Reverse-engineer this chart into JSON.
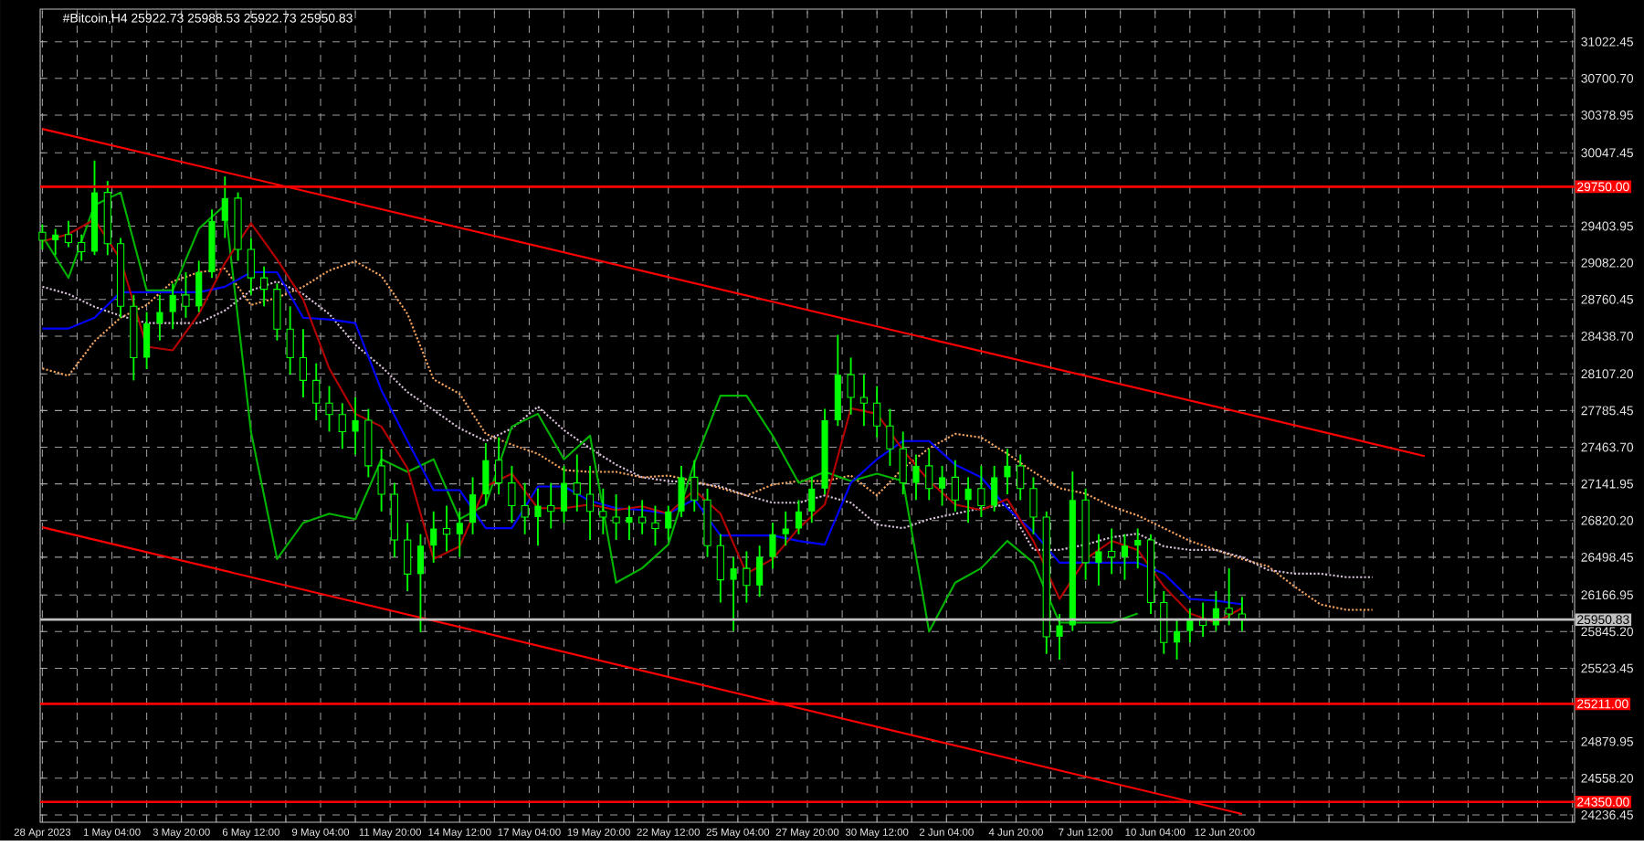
{
  "chart_data": {
    "type": "candlestick",
    "title": "#Bitcoin,H4  25922.73 25988.53 25922.73 25950.83",
    "color": "#00ff00",
    "x": [
      "2023-04-28T12:00",
      "2023-04-29T00:00",
      "2023-04-29T12:00",
      "2023-04-30T00:00",
      "2023-04-30T12:00",
      "2023-05-01T00:00",
      "2023-05-01T12:00",
      "2023-05-02T00:00",
      "2023-05-02T12:00",
      "2023-05-03T00:00",
      "2023-05-03T12:00",
      "2023-05-04T00:00",
      "2023-05-04T12:00",
      "2023-05-05T00:00",
      "2023-05-05T12:00",
      "2023-05-06T00:00",
      "2023-05-06T12:00",
      "2023-05-07T00:00",
      "2023-05-07T12:00",
      "2023-05-08T00:00",
      "2023-05-08T12:00",
      "2023-05-09T00:00",
      "2023-05-09T12:00",
      "2023-05-10T00:00",
      "2023-05-10T12:00",
      "2023-05-11T00:00",
      "2023-05-11T12:00",
      "2023-05-12T00:00",
      "2023-05-12T12:00",
      "2023-05-13T00:00",
      "2023-05-13T12:00",
      "2023-05-14T00:00",
      "2023-05-14T12:00",
      "2023-05-15T00:00",
      "2023-05-15T12:00",
      "2023-05-16T00:00",
      "2023-05-16T12:00",
      "2023-05-17T00:00",
      "2023-05-17T12:00",
      "2023-05-18T00:00",
      "2023-05-18T12:00",
      "2023-05-19T00:00",
      "2023-05-19T12:00",
      "2023-05-20T00:00",
      "2023-05-20T12:00",
      "2023-05-21T00:00",
      "2023-05-21T12:00",
      "2023-05-22T00:00",
      "2023-05-22T12:00",
      "2023-05-23T00:00",
      "2023-05-23T12:00",
      "2023-05-24T00:00",
      "2023-05-24T12:00",
      "2023-05-25T00:00",
      "2023-05-25T12:00",
      "2023-05-26T00:00",
      "2023-05-26T12:00",
      "2023-05-27T00:00",
      "2023-05-27T12:00",
      "2023-05-28T00:00",
      "2023-05-28T12:00",
      "2023-05-29T00:00",
      "2023-05-29T12:00",
      "2023-05-30T00:00",
      "2023-05-30T12:00",
      "2023-05-31T00:00",
      "2023-05-31T12:00",
      "2023-06-01T00:00",
      "2023-06-01T12:00",
      "2023-06-02T00:00",
      "2023-06-02T12:00",
      "2023-06-03T00:00",
      "2023-06-03T12:00",
      "2023-06-04T00:00",
      "2023-06-04T12:00",
      "2023-06-05T00:00",
      "2023-06-05T12:00",
      "2023-06-06T00:00",
      "2023-06-06T12:00",
      "2023-06-07T00:00",
      "2023-06-07T12:00",
      "2023-06-08T00:00",
      "2023-06-08T12:00",
      "2023-06-09T00:00",
      "2023-06-09T12:00",
      "2023-06-10T00:00",
      "2023-06-10T12:00",
      "2023-06-11T00:00",
      "2023-06-11T12:00",
      "2023-06-12T00:00",
      "2023-06-12T12:00",
      "2023-06-13T00:00",
      "2023-06-13T12:00"
    ],
    "ohlc": [
      [
        29350,
        29420,
        29200,
        29280
      ],
      [
        29280,
        29380,
        29150,
        29330
      ],
      [
        29330,
        29450,
        29220,
        29260
      ],
      [
        29260,
        29330,
        29100,
        29180
      ],
      [
        29180,
        29980,
        29150,
        29700
      ],
      [
        29700,
        29800,
        29150,
        29250
      ],
      [
        29250,
        29300,
        28600,
        28700
      ],
      [
        28700,
        28800,
        28050,
        28250
      ],
      [
        28250,
        28650,
        28150,
        28550
      ],
      [
        28550,
        28800,
        28400,
        28650
      ],
      [
        28650,
        28900,
        28500,
        28800
      ],
      [
        28800,
        29000,
        28600,
        28700
      ],
      [
        28700,
        29100,
        28650,
        29000
      ],
      [
        29000,
        29550,
        28950,
        29450
      ],
      [
        29450,
        29840,
        29300,
        29650
      ],
      [
        29650,
        29700,
        29100,
        29200
      ],
      [
        29200,
        29300,
        28800,
        28950
      ],
      [
        28950,
        29050,
        28700,
        28850
      ],
      [
        28850,
        28900,
        28400,
        28500
      ],
      [
        28500,
        28700,
        28100,
        28250
      ],
      [
        28250,
        28500,
        27900,
        28050
      ],
      [
        28050,
        28200,
        27700,
        27850
      ],
      [
        27850,
        28000,
        27600,
        27750
      ],
      [
        27750,
        27850,
        27450,
        27600
      ],
      [
        27600,
        27900,
        27400,
        27700
      ],
      [
        27700,
        27800,
        27200,
        27300
      ],
      [
        27300,
        27450,
        26900,
        27050
      ],
      [
        27050,
        27150,
        26500,
        26650
      ],
      [
        26650,
        26800,
        26200,
        26350
      ],
      [
        26350,
        26700,
        25840,
        26600
      ],
      [
        26600,
        26900,
        26450,
        26750
      ],
      [
        26750,
        26950,
        26550,
        26700
      ],
      [
        26700,
        26900,
        26500,
        26800
      ],
      [
        26800,
        27200,
        26700,
        27050
      ],
      [
        27050,
        27500,
        26950,
        27350
      ],
      [
        27350,
        27550,
        27050,
        27150
      ],
      [
        27150,
        27300,
        26800,
        26950
      ],
      [
        26950,
        27150,
        26700,
        26850
      ],
      [
        26850,
        27100,
        26600,
        26950
      ],
      [
        26950,
        27150,
        26750,
        26900
      ],
      [
        26900,
        27300,
        26800,
        27150
      ],
      [
        27150,
        27400,
        26900,
        27050
      ],
      [
        27050,
        27300,
        26650,
        26900
      ],
      [
        26900,
        27100,
        26700,
        26850
      ],
      [
        26850,
        27050,
        26650,
        26800
      ],
      [
        26800,
        26950,
        26650,
        26850
      ],
      [
        26850,
        27000,
        26700,
        26800
      ],
      [
        26800,
        26950,
        26600,
        26750
      ],
      [
        26750,
        26950,
        26650,
        26900
      ],
      [
        26900,
        27300,
        26850,
        27200
      ],
      [
        27200,
        27350,
        26900,
        27000
      ],
      [
        27000,
        27100,
        26500,
        26600
      ],
      [
        26600,
        26700,
        26100,
        26300
      ],
      [
        26300,
        26500,
        25850,
        26400
      ],
      [
        26400,
        26550,
        26100,
        26250
      ],
      [
        26250,
        26600,
        26150,
        26500
      ],
      [
        26500,
        26800,
        26400,
        26700
      ],
      [
        26700,
        26900,
        26600,
        26750
      ],
      [
        26750,
        27000,
        26700,
        26900
      ],
      [
        26900,
        27200,
        26800,
        27100
      ],
      [
        27100,
        27800,
        27050,
        27700
      ],
      [
        27700,
        28450,
        27650,
        28100
      ],
      [
        28100,
        28250,
        27750,
        27900
      ],
      [
        27900,
        28100,
        27650,
        27850
      ],
      [
        27850,
        28000,
        27550,
        27650
      ],
      [
        27650,
        27800,
        27300,
        27450
      ],
      [
        27450,
        27600,
        27050,
        27150
      ],
      [
        27150,
        27400,
        27000,
        27300
      ],
      [
        27300,
        27450,
        27000,
        27100
      ],
      [
        27100,
        27300,
        26950,
        27200
      ],
      [
        27200,
        27350,
        26900,
        27000
      ],
      [
        27000,
        27200,
        26800,
        27100
      ],
      [
        27100,
        27300,
        26850,
        26950
      ],
      [
        26950,
        27300,
        26900,
        27200
      ],
      [
        27200,
        27450,
        27050,
        27300
      ],
      [
        27300,
        27400,
        27000,
        27100
      ],
      [
        27100,
        27200,
        26700,
        26850
      ],
      [
        26850,
        26900,
        25650,
        25800
      ],
      [
        25800,
        26000,
        25600,
        25900
      ],
      [
        25900,
        27250,
        25850,
        27000
      ],
      [
        27000,
        27100,
        26300,
        26450
      ],
      [
        26450,
        26700,
        26250,
        26550
      ],
      [
        26550,
        26750,
        26350,
        26500
      ],
      [
        26500,
        26700,
        26300,
        26600
      ],
      [
        26600,
        26750,
        26400,
        26650
      ],
      [
        26650,
        26700,
        26000,
        26100
      ],
      [
        26100,
        26200,
        25650,
        25750
      ],
      [
        25750,
        25950,
        25600,
        25850
      ],
      [
        25850,
        26050,
        25750,
        25950
      ],
      [
        25950,
        26100,
        25800,
        25900
      ],
      [
        25900,
        26200,
        25850,
        26050
      ],
      [
        26050,
        26400,
        25900,
        26000
      ],
      [
        26000,
        26150,
        25850,
        25950.83
      ]
    ],
    "series": [
      {
        "type": "line",
        "color": "#ff0000",
        "line_style": "solid",
        "x": [
          "2023-04-28T12:00",
          "2023-06-20T12:00"
        ],
        "values": [
          30257,
          27386
        ]
      },
      {
        "type": "line",
        "color": "#ff0000",
        "line_style": "solid",
        "x": [
          "2023-04-28T12:00",
          "2023-06-13T12:00"
        ],
        "values": [
          26761,
          24244
        ]
      },
      {
        "type": "line",
        "color": "#f4a460",
        "line_style": "dotted",
        "x": [
          "2023-04-28T12:00",
          "2023-04-29T12:00",
          "2023-04-30T12:00",
          "2023-05-01T12:00",
          "2023-05-02T12:00",
          "2023-05-03T12:00",
          "2023-05-04T12:00",
          "2023-05-05T12:00",
          "2023-05-06T12:00",
          "2023-05-07T12:00",
          "2023-05-08T12:00",
          "2023-05-09T12:00",
          "2023-05-10T12:00",
          "2023-05-11T12:00",
          "2023-05-12T12:00",
          "2023-05-13T12:00",
          "2023-05-14T12:00",
          "2023-05-15T12:00",
          "2023-05-16T12:00",
          "2023-05-17T12:00",
          "2023-05-18T12:00",
          "2023-05-19T12:00",
          "2023-05-20T12:00",
          "2023-05-21T12:00",
          "2023-05-22T12:00",
          "2023-05-23T12:00",
          "2023-05-24T12:00",
          "2023-05-25T12:00",
          "2023-05-26T12:00",
          "2023-05-27T12:00",
          "2023-05-28T12:00",
          "2023-05-29T12:00",
          "2023-05-30T12:00",
          "2023-05-31T12:00",
          "2023-06-01T12:00",
          "2023-06-02T12:00",
          "2023-06-03T12:00",
          "2023-06-04T12:00",
          "2023-06-05T12:00",
          "2023-06-06T12:00",
          "2023-06-07T12:00",
          "2023-06-08T12:00",
          "2023-06-09T12:00",
          "2023-06-10T12:00",
          "2023-06-11T12:00",
          "2023-06-12T12:00",
          "2023-06-13T12:00",
          "2023-06-14T12:00",
          "2023-06-15T12:00",
          "2023-06-16T12:00",
          "2023-06-17T12:00",
          "2023-06-18T12:00"
        ],
        "values": [
          28155,
          28091,
          28394,
          28601,
          28712,
          28919,
          28999,
          29031,
          28712,
          28776,
          28872,
          29015,
          29095,
          28967,
          28633,
          28059,
          27932,
          27581,
          27486,
          27406,
          27263,
          27247,
          27247,
          27199,
          27215,
          27167,
          27104,
          27040,
          27135,
          27167,
          27167,
          27215,
          27040,
          27279,
          27454,
          27581,
          27549,
          27406,
          27247,
          27104,
          27056,
          26944,
          26864,
          26753,
          26641,
          26562,
          26482,
          26418,
          26243,
          26084,
          26036,
          26036
        ]
      },
      {
        "type": "line",
        "color": "#d8bfd8",
        "line_style": "dotted",
        "x": [
          "2023-04-28T12:00",
          "2023-04-29T12:00",
          "2023-04-30T12:00",
          "2023-05-01T12:00",
          "2023-05-02T12:00",
          "2023-05-03T12:00",
          "2023-05-04T12:00",
          "2023-05-05T12:00",
          "2023-05-06T12:00",
          "2023-05-07T12:00",
          "2023-05-08T12:00",
          "2023-05-09T12:00",
          "2023-05-10T12:00",
          "2023-05-11T12:00",
          "2023-05-12T12:00",
          "2023-05-13T12:00",
          "2023-05-14T12:00",
          "2023-05-15T12:00",
          "2023-05-16T12:00",
          "2023-05-17T12:00",
          "2023-05-18T12:00",
          "2023-05-19T12:00",
          "2023-05-20T12:00",
          "2023-05-21T12:00",
          "2023-05-22T12:00",
          "2023-05-23T12:00",
          "2023-05-24T12:00",
          "2023-05-25T12:00",
          "2023-05-26T12:00",
          "2023-05-27T12:00",
          "2023-05-28T12:00",
          "2023-05-29T12:00",
          "2023-05-30T12:00",
          "2023-05-31T12:00",
          "2023-06-01T12:00",
          "2023-06-02T12:00",
          "2023-06-03T12:00",
          "2023-06-04T12:00",
          "2023-06-05T12:00",
          "2023-06-06T12:00",
          "2023-06-07T12:00",
          "2023-06-08T12:00",
          "2023-06-09T12:00",
          "2023-06-10T12:00",
          "2023-06-11T12:00",
          "2023-06-12T12:00",
          "2023-06-13T12:00",
          "2023-06-14T12:00",
          "2023-06-15T12:00",
          "2023-06-16T12:00",
          "2023-06-17T12:00",
          "2023-06-18T12:00"
        ],
        "values": [
          28872,
          28808,
          28696,
          28617,
          28553,
          28553,
          28553,
          28664,
          28840,
          28919,
          28808,
          28633,
          28362,
          28171,
          27948,
          27789,
          27629,
          27518,
          27629,
          27820,
          27613,
          27454,
          27310,
          27199,
          27167,
          27151,
          27119,
          27040,
          26976,
          26976,
          27040,
          26976,
          26785,
          26753,
          26832,
          26880,
          26928,
          26960,
          26562,
          26562,
          26609,
          26673,
          26705,
          26593,
          26562,
          26562,
          26498,
          26386,
          26354,
          26354,
          26323,
          26323
        ]
      },
      {
        "type": "line",
        "color": "#00b400",
        "line_style": "solid",
        "x": [
          "2023-04-28T12:00",
          "2023-04-29T12:00",
          "2023-04-30T12:00",
          "2023-05-01T12:00",
          "2023-05-02T12:00",
          "2023-05-03T12:00",
          "2023-05-04T12:00",
          "2023-05-05T12:00",
          "2023-05-06T12:00",
          "2023-05-07T12:00",
          "2023-05-08T12:00",
          "2023-05-09T12:00",
          "2023-05-10T12:00",
          "2023-05-11T12:00",
          "2023-05-12T12:00",
          "2023-05-13T12:00",
          "2023-05-14T12:00",
          "2023-05-15T12:00",
          "2023-05-16T12:00",
          "2023-05-17T12:00",
          "2023-05-18T12:00",
          "2023-05-19T12:00",
          "2023-05-20T12:00",
          "2023-05-21T12:00",
          "2023-05-22T12:00",
          "2023-05-23T12:00",
          "2023-05-24T12:00",
          "2023-05-25T12:00",
          "2023-05-26T12:00",
          "2023-05-27T12:00",
          "2023-05-28T12:00",
          "2023-05-29T12:00",
          "2023-05-30T12:00",
          "2023-05-31T12:00",
          "2023-06-01T12:00",
          "2023-06-02T12:00",
          "2023-06-03T12:00",
          "2023-06-04T12:00",
          "2023-06-05T12:00",
          "2023-06-06T12:00",
          "2023-06-07T12:00",
          "2023-06-08T12:00",
          "2023-06-09T12:00"
        ],
        "values": [
          29318,
          28951,
          29589,
          29700,
          28840,
          28840,
          29382,
          29589,
          27597,
          26482,
          26800,
          26880,
          26832,
          27358,
          27247,
          27358,
          26832,
          26960,
          27645,
          27757,
          27358,
          27565,
          26275,
          26402,
          26609,
          27327,
          27916,
          27916,
          27565,
          27151,
          27247,
          27167,
          27231,
          27167,
          25845,
          26275,
          26402,
          26641,
          26450,
          25924,
          25924,
          25924,
          26004
        ]
      },
      {
        "type": "line",
        "color": "#0000ff",
        "line_style": "solid",
        "x": [
          "2023-04-28T12:00",
          "2023-04-29T12:00",
          "2023-04-30T12:00",
          "2023-05-01T12:00",
          "2023-05-02T12:00",
          "2023-05-03T12:00",
          "2023-05-04T12:00",
          "2023-05-05T12:00",
          "2023-05-06T12:00",
          "2023-05-07T12:00",
          "2023-05-08T12:00",
          "2023-05-09T12:00",
          "2023-05-10T12:00",
          "2023-05-11T12:00",
          "2023-05-12T12:00",
          "2023-05-13T12:00",
          "2023-05-14T12:00",
          "2023-05-15T12:00",
          "2023-05-16T12:00",
          "2023-05-17T12:00",
          "2023-05-18T12:00",
          "2023-05-19T12:00",
          "2023-05-20T12:00",
          "2023-05-21T12:00",
          "2023-05-22T12:00",
          "2023-05-23T12:00",
          "2023-05-24T12:00",
          "2023-05-25T12:00",
          "2023-05-26T12:00",
          "2023-05-27T12:00",
          "2023-05-28T12:00",
          "2023-05-29T12:00",
          "2023-05-30T12:00",
          "2023-05-31T12:00",
          "2023-06-01T12:00",
          "2023-06-02T12:00",
          "2023-06-03T12:00",
          "2023-06-04T12:00",
          "2023-06-05T12:00",
          "2023-06-06T12:00",
          "2023-06-07T12:00",
          "2023-06-08T12:00",
          "2023-06-09T12:00",
          "2023-06-10T12:00",
          "2023-06-11T12:00",
          "2023-06-12T12:00",
          "2023-06-13T12:00"
        ],
        "values": [
          28505,
          28505,
          28600,
          28824,
          28824,
          28824,
          28824,
          28872,
          28999,
          28999,
          28600,
          28585,
          28553,
          27963,
          27518,
          27087,
          27087,
          26753,
          26753,
          27119,
          27119,
          26992,
          26928,
          26912,
          26880,
          27008,
          26689,
          26689,
          26689,
          26641,
          26609,
          27151,
          27358,
          27518,
          27518,
          27310,
          27199,
          26928,
          26721,
          26450,
          26450,
          26450,
          26450,
          26354,
          26131,
          26116,
          26084
        ]
      },
      {
        "type": "line",
        "color": "#b40000",
        "line_style": "solid",
        "x": [
          "2023-04-28T12:00",
          "2023-04-29T12:00",
          "2023-04-30T12:00",
          "2023-05-01T12:00",
          "2023-05-02T12:00",
          "2023-05-03T12:00",
          "2023-05-04T12:00",
          "2023-05-05T12:00",
          "2023-05-06T12:00",
          "2023-05-07T12:00",
          "2023-05-08T12:00",
          "2023-05-09T12:00",
          "2023-05-10T12:00",
          "2023-05-11T12:00",
          "2023-05-12T12:00",
          "2023-05-13T12:00",
          "2023-05-14T12:00",
          "2023-05-15T12:00",
          "2023-05-16T12:00",
          "2023-05-17T12:00",
          "2023-05-18T12:00",
          "2023-05-19T12:00",
          "2023-05-20T12:00",
          "2023-05-21T12:00",
          "2023-05-22T12:00",
          "2023-05-23T12:00",
          "2023-05-24T12:00",
          "2023-05-25T12:00",
          "2023-05-26T12:00",
          "2023-05-27T12:00",
          "2023-05-28T12:00",
          "2023-05-29T12:00",
          "2023-05-30T12:00",
          "2023-05-31T12:00",
          "2023-06-01T12:00",
          "2023-06-02T12:00",
          "2023-06-03T12:00",
          "2023-06-04T12:00",
          "2023-06-05T12:00",
          "2023-06-06T12:00",
          "2023-06-07T12:00",
          "2023-06-08T12:00",
          "2023-06-09T12:00",
          "2023-06-10T12:00",
          "2023-06-11T12:00",
          "2023-06-12T12:00",
          "2023-06-13T12:00"
        ],
        "values": [
          29270,
          29334,
          29462,
          29111,
          28346,
          28314,
          28633,
          29079,
          29430,
          29111,
          28760,
          28155,
          27757,
          27645,
          27279,
          26482,
          26593,
          27119,
          27231,
          26928,
          26928,
          26960,
          26912,
          26944,
          26880,
          27087,
          26880,
          26354,
          26482,
          26753,
          26960,
          27804,
          27757,
          27438,
          27167,
          26960,
          26912,
          27008,
          26641,
          26131,
          26482,
          26641,
          26562,
          26243,
          26004,
          25924,
          26052
        ]
      }
    ],
    "ref_lines": [
      {
        "axis": "y",
        "value": 29750.0,
        "label": "29750.00",
        "color": "#ff0000",
        "line_style": "solid"
      },
      {
        "axis": "y",
        "value": 25211.0,
        "label": "25211.00",
        "color": "#ff0000",
        "line_style": "solid"
      },
      {
        "axis": "y",
        "value": 24350.0,
        "label": "24350.00",
        "color": "#ff0000",
        "line_style": "solid"
      },
      {
        "axis": "y",
        "value": 25950.83,
        "label": "25950.83",
        "color": "#c0c0c0",
        "line_style": "solid"
      }
    ],
    "xlim": [
      "2023-04-28T10:00",
      "2023-06-26T06:00"
    ],
    "ylim": [
      24172,
      31309
    ],
    "xticks": [
      {
        "value": "2023-04-28T12:00",
        "label": "28 Apr 2023"
      },
      {
        "value": "2023-04-29T20:00",
        "label": null
      },
      {
        "value": "2023-05-01T04:00",
        "label": "1 May 04:00"
      },
      {
        "value": "2023-05-02T12:00",
        "label": null
      },
      {
        "value": "2023-05-03T20:00",
        "label": "3 May 20:00"
      },
      {
        "value": "2023-05-05T04:00",
        "label": null
      },
      {
        "value": "2023-05-06T12:00",
        "label": "6 May 12:00"
      },
      {
        "value": "2023-05-07T20:00",
        "label": null
      },
      {
        "value": "2023-05-09T04:00",
        "label": "9 May 04:00"
      },
      {
        "value": "2023-05-10T12:00",
        "label": null
      },
      {
        "value": "2023-05-11T20:00",
        "label": "11 May 20:00"
      },
      {
        "value": "2023-05-13T04:00",
        "label": null
      },
      {
        "value": "2023-05-14T12:00",
        "label": "14 May 12:00"
      },
      {
        "value": "2023-05-15T20:00",
        "label": null
      },
      {
        "value": "2023-05-17T04:00",
        "label": "17 May 04:00"
      },
      {
        "value": "2023-05-18T12:00",
        "label": null
      },
      {
        "value": "2023-05-19T20:00",
        "label": "19 May 20:00"
      },
      {
        "value": "2023-05-21T04:00",
        "label": null
      },
      {
        "value": "2023-05-22T12:00",
        "label": "22 May 12:00"
      },
      {
        "value": "2023-05-23T20:00",
        "label": null
      },
      {
        "value": "2023-05-25T04:00",
        "label": "25 May 04:00"
      },
      {
        "value": "2023-05-26T12:00",
        "label": null
      },
      {
        "value": "2023-05-27T20:00",
        "label": "27 May 20:00"
      },
      {
        "value": "2023-05-29T04:00",
        "label": null
      },
      {
        "value": "2023-05-30T12:00",
        "label": "30 May 12:00"
      },
      {
        "value": "2023-05-31T20:00",
        "label": null
      },
      {
        "value": "2023-06-02T04:00",
        "label": "2 Jun 04:00"
      },
      {
        "value": "2023-06-03T12:00",
        "label": null
      },
      {
        "value": "2023-06-04T20:00",
        "label": "4 Jun 20:00"
      },
      {
        "value": "2023-06-06T04:00",
        "label": null
      },
      {
        "value": "2023-06-07T12:00",
        "label": "7 Jun 12:00"
      },
      {
        "value": "2023-06-08T20:00",
        "label": null
      },
      {
        "value": "2023-06-10T04:00",
        "label": "10 Jun 04:00"
      },
      {
        "value": "2023-06-11T12:00",
        "label": null
      },
      {
        "value": "2023-06-12T20:00",
        "label": "12 Jun 20:00"
      },
      {
        "value": "2023-06-14T04:00",
        "label": null
      },
      {
        "value": "2023-06-15T12:00",
        "label": null
      },
      {
        "value": "2023-06-16T20:00",
        "label": null
      },
      {
        "value": "2023-06-18T04:00",
        "label": null
      },
      {
        "value": "2023-06-19T12:00",
        "label": null
      },
      {
        "value": "2023-06-20T20:00",
        "label": null
      },
      {
        "value": "2023-06-22T04:00",
        "label": null
      },
      {
        "value": "2023-06-23T12:00",
        "label": null
      },
      {
        "value": "2023-06-24T20:00",
        "label": null
      },
      {
        "value": "2023-06-26T04:00",
        "label": null
      }
    ],
    "yticks": [
      {
        "value": 24236.45,
        "label": "24236.45"
      },
      {
        "value": 24558.2,
        "label": "24558.20"
      },
      {
        "value": 24879.95,
        "label": "24879.95"
      },
      {
        "value": 25523.45,
        "label": "25523.45"
      },
      {
        "value": 25845.2,
        "label": "25845.20"
      },
      {
        "value": 26166.95,
        "label": "26166.95"
      },
      {
        "value": 26498.45,
        "label": "26498.45"
      },
      {
        "value": 26820.2,
        "label": "26820.20"
      },
      {
        "value": 27141.95,
        "label": "27141.95"
      },
      {
        "value": 27463.7,
        "label": "27463.70"
      },
      {
        "value": 27785.45,
        "label": "27785.45"
      },
      {
        "value": 28107.2,
        "label": "28107.20"
      },
      {
        "value": 28438.7,
        "label": "28438.70"
      },
      {
        "value": 28760.45,
        "label": "28760.45"
      },
      {
        "value": 29082.2,
        "label": "29082.20"
      },
      {
        "value": 29403.95,
        "label": "29403.95"
      },
      {
        "value": 30047.45,
        "label": "30047.45"
      },
      {
        "value": 30378.95,
        "label": "30378.95"
      },
      {
        "value": 30700.7,
        "label": "30700.70"
      },
      {
        "value": 31022.45,
        "label": "31022.45"
      }
    ],
    "grid": true
  }
}
